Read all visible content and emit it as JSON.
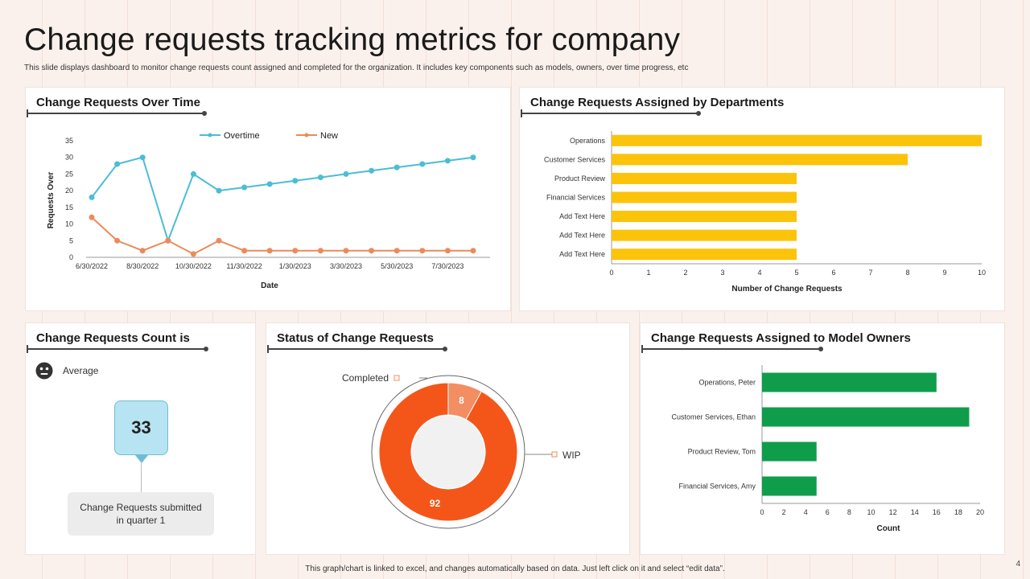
{
  "title": "Change requests tracking metrics for company",
  "subtitle": "This slide displays dashboard to monitor change requests count assigned and completed  for the organization. It includes key components such as models,  owners, over time progress, etc",
  "footer": "This graph/chart is linked to excel, and changes automatically based on data. Just left click on it and select “edit data”.",
  "page_number": "4",
  "count_panel": {
    "title": "Change Requests Count is",
    "status_label": "Average",
    "status_icon": "neutral-face-icon",
    "value": "33",
    "caption": "Change Requests submitted in quarter  1"
  },
  "colors": {
    "overtime": "#4bbdd6",
    "new": "#ec8a5b",
    "departments": "#fcc30b",
    "owners": "#0f9d4b",
    "wip": "#f4561a",
    "completed": "#f38d62"
  },
  "chart_data": [
    {
      "type": "line",
      "title": "Change Requests Over Time",
      "xlabel": "Date",
      "ylabel": "Requests Over",
      "ylim": [
        0,
        35
      ],
      "yticks": [
        0,
        5,
        10,
        15,
        20,
        25,
        30,
        35
      ],
      "xtick_labels": [
        "6/30/2022",
        "8/30/2022",
        "10/30/2022",
        "11/30/2022",
        "1/30/2023",
        "3/30/2023",
        "5/30/2023",
        "7/30/2023"
      ],
      "xtick_index": [
        0,
        2,
        4,
        6,
        8,
        10,
        12,
        14
      ],
      "n_points": 16,
      "legend_position": "top",
      "series": [
        {
          "name": "Overtime",
          "values": [
            18,
            28,
            30,
            5,
            25,
            20,
            21,
            22,
            23,
            24,
            25,
            26,
            27,
            28,
            29,
            30
          ]
        },
        {
          "name": "New",
          "values": [
            12,
            5,
            2,
            5,
            1,
            5,
            2,
            2,
            2,
            2,
            2,
            2,
            2,
            2,
            2,
            2
          ]
        }
      ]
    },
    {
      "type": "bar",
      "orientation": "horizontal",
      "title": "Change Requests Assigned by Departments",
      "xlabel": "Number of Change Requests",
      "xlim": [
        0,
        10
      ],
      "xticks": [
        0,
        1,
        2,
        3,
        4,
        5,
        6,
        7,
        8,
        9,
        10
      ],
      "categories": [
        "Operations",
        "Customer Services",
        "Product Review",
        "Financial Services",
        "Add Text Here",
        "Add Text Here",
        "Add Text Here"
      ],
      "values": [
        10,
        8,
        5,
        5,
        5,
        5,
        5
      ]
    },
    {
      "type": "pie",
      "variant": "donut",
      "title": "Status of Change Requests",
      "labels": [
        "Completed",
        "WIP"
      ],
      "values": [
        8,
        92
      ]
    },
    {
      "type": "bar",
      "orientation": "horizontal",
      "title": "Change Requests Assigned to Model Owners",
      "xlabel": "Count",
      "xlim": [
        0,
        20
      ],
      "xticks": [
        0,
        2,
        4,
        6,
        8,
        10,
        12,
        14,
        16,
        18,
        20
      ],
      "categories": [
        "Operations, Peter",
        "Customer Services, Ethan",
        "Product Review, Tom",
        "Financial Services, Amy"
      ],
      "values": [
        16,
        19,
        5,
        5
      ]
    }
  ]
}
